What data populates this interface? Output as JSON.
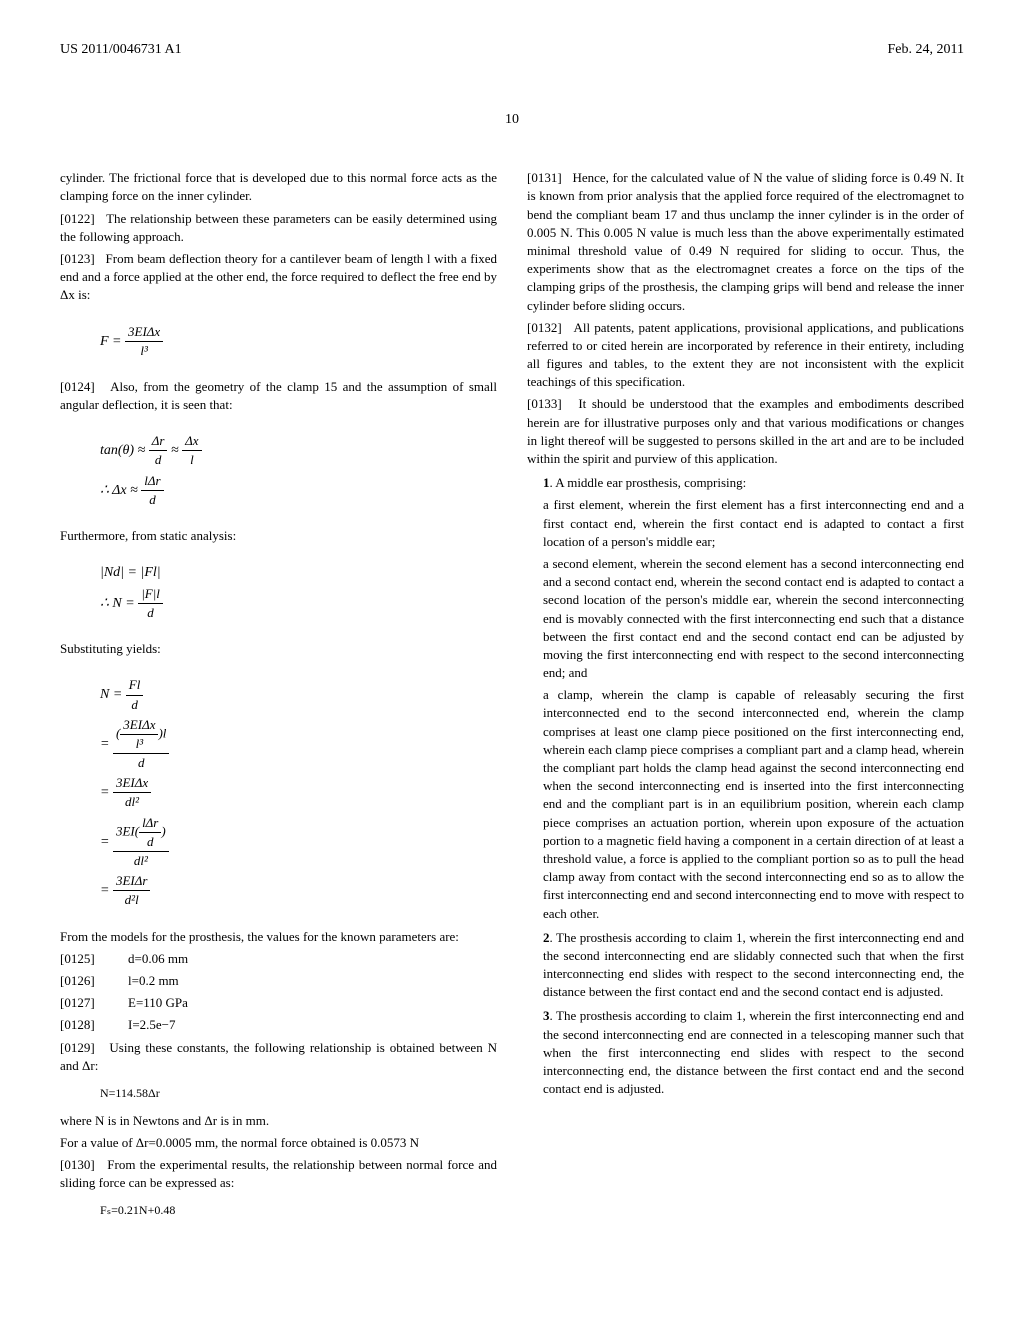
{
  "header": {
    "left": "US 2011/0046731 A1",
    "right": "Feb. 24, 2011"
  },
  "page_number": "10",
  "left_column": {
    "p_cont": "cylinder. The frictional force that is developed due to this normal force acts as the clamping force on the inner cylinder.",
    "p0122_num": "[0122]",
    "p0122": "The relationship between these parameters can be easily determined using the following approach.",
    "p0123_num": "[0123]",
    "p0123": "From beam deflection theory for a cantilever beam of length l with a fixed end and a force applied at the other end, the force required to deflect the free end by Δx is:",
    "eq1": "F = 3EIΔx / l³",
    "p0124_num": "[0124]",
    "p0124": "Also, from the geometry of the clamp 15 and the assumption of small angular deflection, it is seen that:",
    "eq2a": "tan(θ) ≈ Δr/d ≈ Δx/l",
    "eq2b": "∴ Δx ≈ lΔr/d",
    "furthermore": "Furthermore, from static analysis:",
    "eq3a": "|Nd| = |Fl|",
    "eq3b": "∴ N = |F|l / d",
    "substituting": "Substituting yields:",
    "eq4a": "N = Fl/d",
    "eq4b": "= (3EIΔx/l³)l / d",
    "eq4c": "= 3EIΔx / dl²",
    "eq4d": "= 3EI(lΔr/d) / dl²",
    "eq4e": "= 3EIΔr / d²l",
    "from_models": "From the models for the prosthesis, the values for the known parameters are:",
    "p0125_num": "[0125]",
    "p0125": "d=0.06 mm",
    "p0126_num": "[0126]",
    "p0126": "l=0.2 mm",
    "p0127_num": "[0127]",
    "p0127": "E=110 GPa",
    "p0128_num": "[0128]",
    "p0128": "I=2.5e−7",
    "p0129_num": "[0129]",
    "p0129": "Using these constants, the following relationship is obtained between N and Δr:",
    "eq5": "N=114.58Δr",
    "where_n": "where N is in Newtons and Δr is in mm.",
    "for_value": "For a value of Δr=0.0005 mm, the normal force obtained is 0.0573 N",
    "p0130_num": "[0130]",
    "p0130": "From the experimental results, the relationship between normal force and sliding force can be expressed as:",
    "eq6": "Fₛ=0.21N+0.48"
  },
  "right_column": {
    "p0131_num": "[0131]",
    "p0131": "Hence, for the calculated value of N the value of sliding force is 0.49 N. It is known from prior analysis that the applied force required of the electromagnet to bend the compliant beam 17 and thus unclamp the inner cylinder is in the order of 0.005 N. This 0.005 N value is much less than the above experimentally estimated minimal threshold value of 0.49 N required for sliding to occur. Thus, the experiments show that as the electromagnet creates a force on the tips of the clamping grips of the prosthesis, the clamping grips will bend and release the inner cylinder before sliding occurs.",
    "p0132_num": "[0132]",
    "p0132": "All patents, patent applications, provisional applications, and publications referred to or cited herein are incorporated by reference in their entirety, including all figures and tables, to the extent they are not inconsistent with the explicit teachings of this specification.",
    "p0133_num": "[0133]",
    "p0133": "It should be understood that the examples and embodiments described herein are for illustrative purposes only and that various modifications or changes in light thereof will be suggested to persons skilled in the art and are to be included within the spirit and purview of this application.",
    "claim1_num": "1",
    "claim1_intro": ". A middle ear prosthesis, comprising:",
    "claim1_a": "a first element, wherein the first element has a first interconnecting end and a first contact end, wherein the first contact end is adapted to contact a first location of a person's middle ear;",
    "claim1_b": "a second element, wherein the second element has a second interconnecting end and a second contact end, wherein the second contact end is adapted to contact a second location of the person's middle ear, wherein the second interconnecting end is movably connected with the first interconnecting end such that a distance between the first contact end and the second contact end can be adjusted by moving the first interconnecting end with respect to the second interconnecting end; and",
    "claim1_c": "a clamp, wherein the clamp is capable of releasably securing the first interconnected end to the second interconnected end, wherein the clamp comprises at least one clamp piece positioned on the first interconnecting end, wherein each clamp piece comprises a compliant part and a clamp head, wherein the compliant part holds the clamp head against the second interconnecting end when the second interconnecting end is inserted into the first interconnecting end and the compliant part is in an equilibrium position, wherein each clamp piece comprises an actuation portion, wherein upon exposure of the actuation portion to a magnetic field having a component in a certain direction of at least a threshold value, a force is applied to the compliant portion so as to pull the head clamp away from contact with the second interconnecting end so as to allow the first interconnecting end and second interconnecting end to move with respect to each other.",
    "claim2_num": "2",
    "claim2": ". The prosthesis according to claim 1, wherein the first interconnecting end and the second interconnecting end are slidably connected such that when the first interconnecting end slides with respect to the second interconnecting end, the distance between the first contact end and the second contact end is adjusted.",
    "claim3_num": "3",
    "claim3": ". The prosthesis according to claim 1, wherein the first interconnecting end and the second interconnecting end are connected in a telescoping manner such that when the first interconnecting end slides with respect to the second interconnecting end, the distance between the first contact end and the second contact end is adjusted."
  }
}
